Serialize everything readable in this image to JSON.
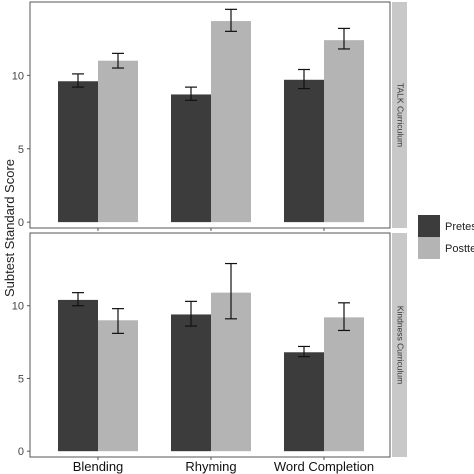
{
  "chart_data": {
    "type": "bar",
    "ylabel": "Subtest Standard Score",
    "categories": [
      "Blending",
      "Rhyming",
      "Word Completion"
    ],
    "legend": {
      "position": "right",
      "entries": [
        {
          "name": "Pretest",
          "color": "#3c3c3c"
        },
        {
          "name": "Posttest",
          "color": "#b4b4b4"
        }
      ]
    },
    "panels": [
      {
        "strip_label": "TALK Curriculum",
        "ylim": [
          -0.4,
          15
        ],
        "yticks": [
          0,
          5,
          10
        ],
        "series": [
          {
            "name": "Pretest",
            "values": [
              9.6,
              8.7,
              9.7
            ],
            "error_low": [
              9.2,
              8.3,
              9.1
            ],
            "error_high": [
              10.1,
              9.2,
              10.4
            ]
          },
          {
            "name": "Posttest",
            "values": [
              11.0,
              13.7,
              12.4
            ],
            "error_low": [
              10.5,
              13.0,
              11.8
            ],
            "error_high": [
              11.5,
              14.5,
              13.2
            ]
          }
        ]
      },
      {
        "strip_label": "Kindness Curriculum",
        "ylim": [
          -0.4,
          15
        ],
        "yticks": [
          0,
          5,
          10
        ],
        "series": [
          {
            "name": "Pretest",
            "values": [
              10.4,
              9.4,
              6.8
            ],
            "error_low": [
              10.0,
              8.6,
              6.5
            ],
            "error_high": [
              10.9,
              10.3,
              7.2
            ]
          },
          {
            "name": "Posttest",
            "values": [
              9.0,
              10.9,
              9.2
            ],
            "error_low": [
              8.1,
              9.1,
              8.3
            ],
            "error_high": [
              9.8,
              12.9,
              10.2
            ]
          }
        ]
      }
    ],
    "grid": false
  }
}
